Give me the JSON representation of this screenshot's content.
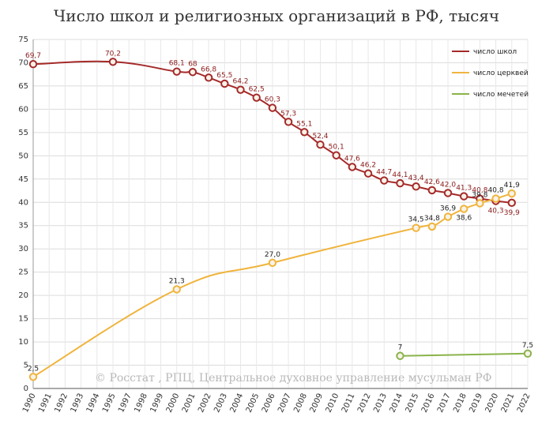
{
  "chart_data": {
    "type": "line",
    "title": "Число школ и религиозных организаций в РФ, тысяч",
    "watermark": "© Росстат , РПЦ, Центральное духовное управление мусульман РФ",
    "categories": [
      "1990",
      "1991",
      "1992",
      "1993",
      "1994",
      "1995",
      "1997",
      "1998",
      "1999",
      "2000",
      "2001",
      "2002",
      "2003",
      "2004",
      "2005",
      "2006",
      "2007",
      "2008",
      "2009",
      "2010",
      "2011",
      "2012",
      "2013",
      "2014",
      "2015",
      "2016",
      "2017",
      "2018",
      "2019",
      "2020",
      "2021",
      "2022"
    ],
    "ylim": [
      0,
      75
    ],
    "yticks": [
      "0",
      "5",
      "10",
      "15",
      "20",
      "25",
      "30",
      "35",
      "40",
      "45",
      "50",
      "55",
      "60",
      "65",
      "70",
      "75"
    ],
    "grid": true,
    "legend_position": "top-right",
    "series": [
      {
        "name": "число школ",
        "color": "#a52a2a",
        "points": [
          {
            "x": 0,
            "y": 69.7,
            "label": "69,7"
          },
          {
            "x": 5,
            "y": 70.2,
            "label": "70,2"
          },
          {
            "x": 9,
            "y": 68.1,
            "label": "68,1"
          },
          {
            "x": 10,
            "y": 68.0,
            "label": "68"
          },
          {
            "x": 11,
            "y": 66.8,
            "label": "66,8"
          },
          {
            "x": 12,
            "y": 65.5,
            "label": "65,5"
          },
          {
            "x": 13,
            "y": 64.2,
            "label": "64,2"
          },
          {
            "x": 14,
            "y": 62.5,
            "label": "62,5"
          },
          {
            "x": 15,
            "y": 60.3,
            "label": "60,3"
          },
          {
            "x": 16,
            "y": 57.3,
            "label": "57,3"
          },
          {
            "x": 17,
            "y": 55.1,
            "label": "55,1"
          },
          {
            "x": 18,
            "y": 52.4,
            "label": "52,4"
          },
          {
            "x": 19,
            "y": 50.1,
            "label": "50,1"
          },
          {
            "x": 20,
            "y": 47.6,
            "label": "47,6"
          },
          {
            "x": 21,
            "y": 46.2,
            "label": "46,2"
          },
          {
            "x": 22,
            "y": 44.7,
            "label": "44,7"
          },
          {
            "x": 23,
            "y": 44.1,
            "label": "44,1"
          },
          {
            "x": 24,
            "y": 43.4,
            "label": "43,4"
          },
          {
            "x": 25,
            "y": 42.6,
            "label": "42,6"
          },
          {
            "x": 26,
            "y": 42.0,
            "label": "42,0"
          },
          {
            "x": 27,
            "y": 41.3,
            "label": "41,3"
          },
          {
            "x": 28,
            "y": 40.8,
            "label": "40,8"
          },
          {
            "x": 29,
            "y": 40.3,
            "label": "40,3"
          },
          {
            "x": 30,
            "y": 39.9,
            "label": "39,9"
          }
        ]
      },
      {
        "name": "число церквей",
        "color": "#f0b43c",
        "points": [
          {
            "x": 0,
            "y": 2.5,
            "label": "2,5"
          },
          {
            "x": 9,
            "y": 21.3,
            "label": "21,3"
          },
          {
            "x": 15,
            "y": 27.0,
            "label": "27,0"
          },
          {
            "x": 24,
            "y": 34.5,
            "label": "34,5"
          },
          {
            "x": 25,
            "y": 34.8,
            "label": "34,8"
          },
          {
            "x": 26,
            "y": 36.9,
            "label": "36,9"
          },
          {
            "x": 27,
            "y": 38.6,
            "label": "38,6"
          },
          {
            "x": 28,
            "y": 39.8,
            "label": "39,8"
          },
          {
            "x": 29,
            "y": 40.8,
            "label": "40,8"
          },
          {
            "x": 30,
            "y": 41.9,
            "label": "41,9"
          }
        ]
      },
      {
        "name": "число мечетей",
        "color": "#8ab34a",
        "points": [
          {
            "x": 23,
            "y": 7.0,
            "label": "7"
          },
          {
            "x": 31,
            "y": 7.5,
            "label": "7,5"
          }
        ]
      }
    ]
  }
}
